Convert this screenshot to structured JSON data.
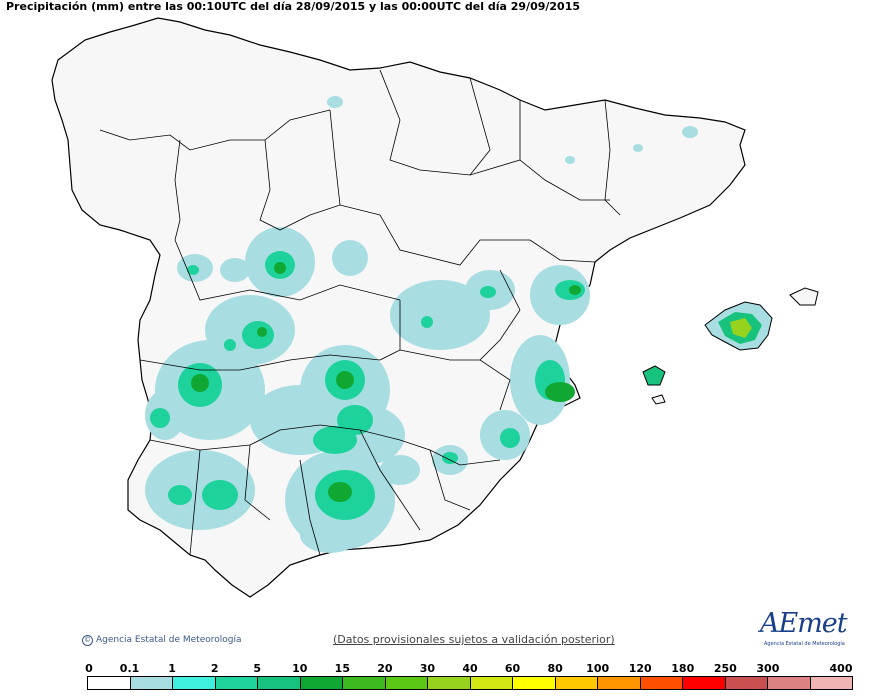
{
  "title": "Precipitación (mm) entre las 00:10UTC del día 28/09/2015 y las 00:00UTC del día 29/09/2015",
  "footer": {
    "copyright": "Agencia Estatal de Meteorología",
    "note": "(Datos provisionales sujetos a validación posterior)",
    "logo_word": "AEmet",
    "logo_sub": "Agencia Estatal de Meteorología"
  },
  "legend": {
    "ticks": [
      "0",
      "0.1",
      "1",
      "2",
      "5",
      "10",
      "15",
      "20",
      "30",
      "40",
      "60",
      "80",
      "100",
      "120",
      "180",
      "250",
      "300",
      "400"
    ],
    "colors": [
      "#ffffff",
      "#a8dde2",
      "#3ff0dc",
      "#1ed29c",
      "#17c37c",
      "#10a832",
      "#3cb91e",
      "#5ac814",
      "#96d21e",
      "#d2e614",
      "#ffff00",
      "#ffc800",
      "#ff9600",
      "#ff5000",
      "#ff0000",
      "#c85050",
      "#dc8282",
      "#f0b4b4"
    ]
  },
  "map": {
    "land_color": "#f7f7f7",
    "border_color": "#000000",
    "precip_colors": {
      "light": "#a8dde2",
      "cyan": "#3ff0dc",
      "green": "#1ed29c",
      "mid": "#10a832",
      "dark": "#0c8a2a",
      "yellowgreen": "#96d21e"
    }
  }
}
